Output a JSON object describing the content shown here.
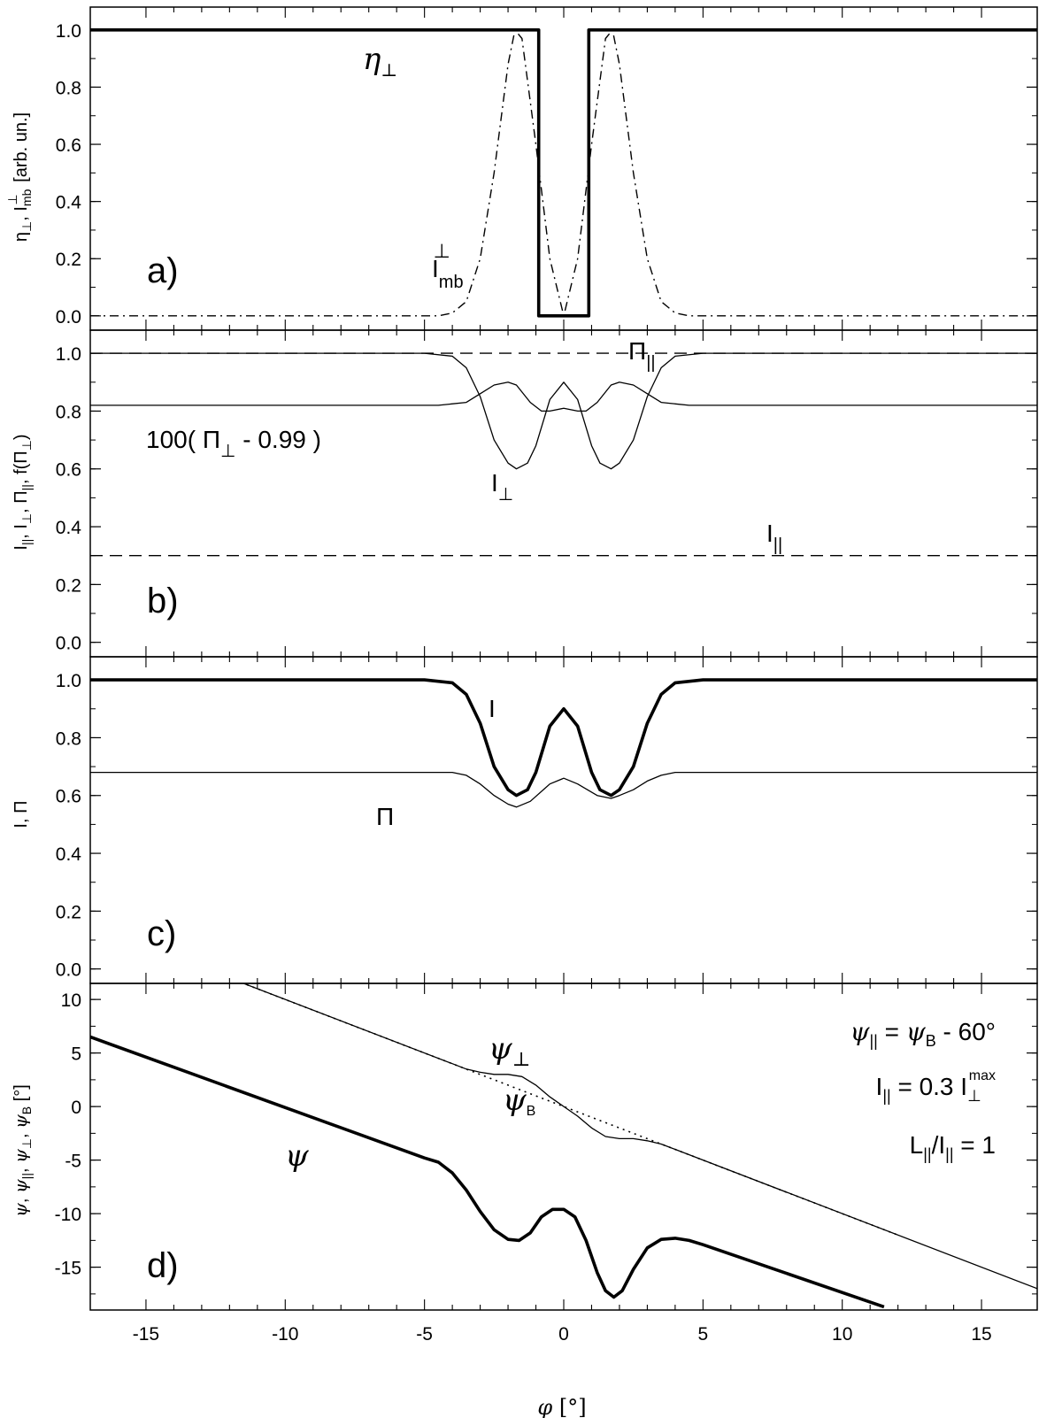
{
  "chart_data": [
    {
      "panel": "a)",
      "type": "line",
      "ylabel": "η⊥, I⊥mb [arb. un.]",
      "xlim": [
        -17,
        17
      ],
      "ylim": [
        -0.05,
        1.08
      ],
      "yticks": [
        "0.0",
        "0.2",
        "0.4",
        "0.6",
        "0.8",
        "1.0"
      ],
      "series": [
        {
          "name": "η⊥",
          "style": "thick",
          "x": [
            -17,
            -0.9,
            -0.9,
            0.9,
            0.9,
            17
          ],
          "y": [
            1,
            1,
            0,
            0,
            1,
            1
          ]
        },
        {
          "name": "I⊥mb",
          "style": "dash-dot",
          "x": [
            -17,
            -4.5,
            -4,
            -3.5,
            -3,
            -2.5,
            -2,
            -1.75,
            -1.5,
            -1,
            -0.5,
            0,
            0.5,
            1,
            1.5,
            1.75,
            2,
            2.5,
            3,
            3.5,
            4,
            4.5,
            17
          ],
          "y": [
            0,
            0,
            0.01,
            0.05,
            0.2,
            0.5,
            0.88,
            1.0,
            0.97,
            0.6,
            0.2,
            0,
            0.2,
            0.6,
            0.97,
            1.0,
            0.88,
            0.5,
            0.2,
            0.05,
            0.01,
            0,
            0
          ]
        }
      ],
      "annotations": [
        {
          "text": "η⊥",
          "x": -7.3,
          "y": 0.92
        },
        {
          "text": "I⊥mb",
          "x": -4.5,
          "y": 0.14
        }
      ]
    },
    {
      "panel": "b)",
      "type": "line",
      "ylabel": "I||, I⊥, Π||, f(Π⊥)",
      "xlim": [
        -17,
        17
      ],
      "ylim": [
        -0.05,
        1.08
      ],
      "yticks": [
        "0.0",
        "0.2",
        "0.4",
        "0.6",
        "0.8",
        "1.0"
      ],
      "series": [
        {
          "name": "Π||",
          "style": "dashed",
          "x": [
            -17,
            17
          ],
          "y": [
            1.0,
            1.0
          ]
        },
        {
          "name": "I||",
          "style": "dashed",
          "x": [
            -17,
            17
          ],
          "y": [
            0.3,
            0.3
          ]
        },
        {
          "name": "I⊥",
          "style": "thin",
          "x": [
            -17,
            -5,
            -4,
            -3.5,
            -3,
            -2.5,
            -2,
            -1.7,
            -1.3,
            -1,
            -0.5,
            0,
            0.5,
            1,
            1.3,
            1.7,
            2,
            2.5,
            3,
            3.5,
            4,
            5,
            17
          ],
          "y": [
            1,
            1,
            0.99,
            0.95,
            0.85,
            0.7,
            0.62,
            0.6,
            0.62,
            0.68,
            0.84,
            0.9,
            0.84,
            0.68,
            0.62,
            0.6,
            0.62,
            0.7,
            0.85,
            0.95,
            0.99,
            1,
            1
          ]
        },
        {
          "name": "100(Π⊥ - 0.99)",
          "style": "thin",
          "x": [
            -17,
            -4.5,
            -3.5,
            -3,
            -2.5,
            -2,
            -1.7,
            -1.2,
            -0.8,
            -0.5,
            0,
            0.5,
            0.8,
            1.2,
            1.7,
            2,
            2.5,
            3,
            3.5,
            4.5,
            17
          ],
          "y": [
            0.82,
            0.82,
            0.83,
            0.86,
            0.89,
            0.9,
            0.89,
            0.83,
            0.8,
            0.8,
            0.81,
            0.8,
            0.8,
            0.83,
            0.89,
            0.9,
            0.89,
            0.86,
            0.83,
            0.82,
            0.82
          ]
        }
      ],
      "annotations": [
        {
          "text": "Π||",
          "x": 2.5,
          "y": 1.0
        },
        {
          "text": "100( Π⊥ - 0.99 )",
          "x": -15,
          "y": 0.74
        },
        {
          "text": "I⊥",
          "x": -3,
          "y": 0.55
        },
        {
          "text": "I||",
          "x": 6.7,
          "y": 0.36
        }
      ]
    },
    {
      "panel": "c)",
      "type": "line",
      "ylabel": "I, Π",
      "xlim": [
        -17,
        17
      ],
      "ylim": [
        -0.05,
        1.08
      ],
      "yticks": [
        "0.0",
        "0.2",
        "0.4",
        "0.6",
        "0.8",
        "1.0"
      ],
      "series": [
        {
          "name": "I",
          "style": "thick",
          "x": [
            -17,
            -5,
            -4,
            -3.5,
            -3,
            -2.5,
            -2,
            -1.7,
            -1.3,
            -1,
            -0.5,
            0,
            0.5,
            1,
            1.3,
            1.7,
            2,
            2.5,
            3,
            3.5,
            4,
            5,
            17
          ],
          "y": [
            1,
            1,
            0.99,
            0.95,
            0.85,
            0.7,
            0.62,
            0.6,
            0.62,
            0.68,
            0.84,
            0.9,
            0.84,
            0.68,
            0.62,
            0.6,
            0.62,
            0.7,
            0.85,
            0.95,
            0.99,
            1,
            1
          ]
        },
        {
          "name": "Π",
          "style": "thin",
          "x": [
            -17,
            -4,
            -3.5,
            -3,
            -2.5,
            -2,
            -1.7,
            -1.2,
            -0.5,
            0,
            0.5,
            1.2,
            1.7,
            2,
            2.5,
            3,
            3.5,
            4,
            17
          ],
          "y": [
            0.68,
            0.68,
            0.67,
            0.64,
            0.6,
            0.57,
            0.56,
            0.58,
            0.64,
            0.66,
            0.64,
            0.6,
            0.59,
            0.6,
            0.62,
            0.65,
            0.67,
            0.68,
            0.68
          ]
        }
      ],
      "annotations": [
        {
          "text": "I",
          "x": -3.7,
          "y": 0.9
        },
        {
          "text": "Π",
          "x": -7.2,
          "y": 0.58
        }
      ]
    },
    {
      "panel": "d)",
      "type": "line",
      "ylabel": "ψ, ψ||, ψ⊥, ψB [°]",
      "xlabel": "φ [°]",
      "xlim": [
        -17,
        17
      ],
      "ylim": [
        -19,
        11.5
      ],
      "xticks": [
        "-15",
        "-10",
        "-5",
        "0",
        "5",
        "10",
        "15"
      ],
      "yticks": [
        "-15",
        "-10",
        "-5",
        "0",
        "5",
        "10"
      ],
      "series": [
        {
          "name": "ψB",
          "style": "dotted",
          "x": [
            -12,
            12
          ],
          "y": [
            12,
            -12
          ]
        },
        {
          "name": "ψ⊥",
          "style": "thin",
          "x": [
            -12.1,
            -4,
            -3.5,
            -3,
            -2.5,
            -2,
            -1.5,
            -1,
            -0.5,
            0,
            0.5,
            1,
            1.5,
            2,
            2.5,
            3,
            3.5,
            4,
            17
          ],
          "y": [
            12.1,
            4,
            3.5,
            3.2,
            3.0,
            3.0,
            2.8,
            2.0,
            0.9,
            0,
            -0.9,
            -2.0,
            -2.8,
            -3.0,
            -3.0,
            -3.2,
            -3.5,
            -4,
            -17
          ]
        },
        {
          "name": "ψ",
          "style": "thick",
          "x": [
            -17,
            -5,
            -4.5,
            -4,
            -3.5,
            -3,
            -2.5,
            -2,
            -1.6,
            -1.2,
            -0.8,
            -0.4,
            0,
            0.4,
            0.8,
            1.2,
            1.5,
            1.8,
            2.1,
            2.5,
            3,
            3.5,
            4,
            4.5,
            5,
            11.5
          ],
          "y": [
            6.5,
            -4.8,
            -5.2,
            -6.2,
            -7.8,
            -9.8,
            -11.5,
            -12.4,
            -12.5,
            -11.8,
            -10.3,
            -9.6,
            -9.6,
            -10.3,
            -12.5,
            -15.5,
            -17.2,
            -17.8,
            -17.2,
            -15.2,
            -13.2,
            -12.4,
            -12.3,
            -12.5,
            -12.9,
            -18.7
          ]
        }
      ],
      "annotations": [
        {
          "text": "ψ⊥",
          "x": -3.8,
          "y": 2.5
        },
        {
          "text": "ψB",
          "x": -2.5,
          "y": -1.3
        },
        {
          "text": "ψ",
          "x": -10.3,
          "y": -3.8
        },
        {
          "text": "ψ|| = ψB - 60°",
          "x": 16.2,
          "y": 7.0
        },
        {
          "text": "I|| = 0.3 I⊥max",
          "x": 16.2,
          "y": 1.6
        },
        {
          "text": "L||/I|| = 1",
          "x": 16.2,
          "y": -4.2
        }
      ]
    }
  ]
}
